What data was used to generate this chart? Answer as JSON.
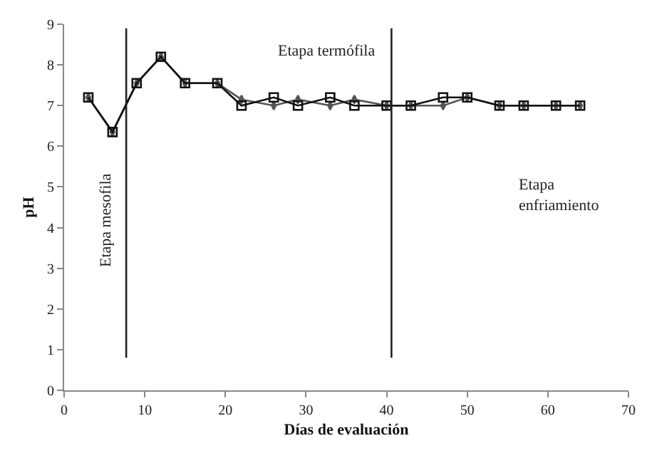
{
  "chart_data": {
    "type": "line",
    "xlabel": "Días de evaluación",
    "ylabel": "pH",
    "xlim": [
      0,
      70
    ],
    "xticks": [
      0,
      10,
      20,
      30,
      40,
      50,
      60,
      70
    ],
    "ylim": [
      0,
      9
    ],
    "yticks": [
      0,
      1,
      2,
      3,
      4,
      5,
      6,
      7,
      8,
      9
    ],
    "series": [
      {
        "color": "#555555",
        "marker": "diamond",
        "x": [
          3,
          6,
          9,
          12,
          15,
          19,
          22,
          26,
          29,
          33,
          36,
          40,
          43,
          47,
          50,
          54,
          57,
          61,
          64
        ],
        "values": [
          7.2,
          6.35,
          7.55,
          8.2,
          7.55,
          7.55,
          7.15,
          7.0,
          7.15,
          7.0,
          7.15,
          7.0,
          7.0,
          7.0,
          7.2,
          7.0,
          7.0,
          7.0,
          7.0
        ]
      },
      {
        "color": "#111111",
        "marker": "square",
        "x": [
          3,
          6,
          9,
          12,
          15,
          19,
          22,
          26,
          29,
          33,
          36,
          40,
          43,
          47,
          50,
          54,
          57,
          61,
          64
        ],
        "values": [
          7.2,
          6.35,
          7.55,
          8.2,
          7.55,
          7.55,
          7.0,
          7.2,
          7.0,
          7.2,
          7.0,
          7.0,
          7.0,
          7.2,
          7.2,
          7.0,
          7.0,
          7.0,
          7.0
        ]
      }
    ],
    "ref_lines": [
      {
        "axis": "x",
        "value": 7.7,
        "color": "#222222"
      },
      {
        "axis": "x",
        "value": 40.6,
        "color": "#222222"
      }
    ],
    "annotations": [
      "Etapa mesofila",
      "Etapa termófila",
      "Etapa\nenfriamiento"
    ]
  }
}
